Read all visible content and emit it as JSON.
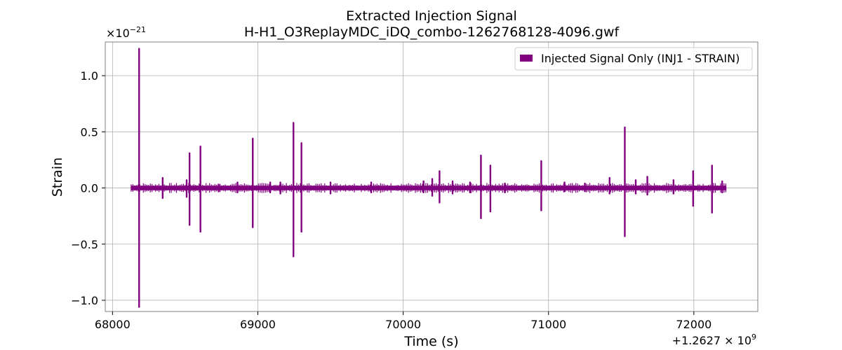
{
  "chart_data": {
    "type": "line",
    "title": "Extracted Injection Signal",
    "subtitle": "H-H1_O3ReplayMDC_iDQ_combo-1262768128-4096.gwf",
    "xlabel": "Time (s)",
    "ylabel": "Strain",
    "x_offset_text": "+1.2627 × 10^9",
    "y_scale_text": "×10^−21",
    "xlim": [
      67950,
      72440
    ],
    "ylim": [
      -1.1,
      1.3
    ],
    "x_ticks": [
      68000,
      69000,
      70000,
      71000,
      72000
    ],
    "x_tick_labels": [
      "68000",
      "69000",
      "70000",
      "71000",
      "72000"
    ],
    "y_ticks": [
      -1.0,
      -0.5,
      0.0,
      0.5,
      1.0
    ],
    "y_tick_labels": [
      "−1.0",
      "−0.5",
      "0.0",
      "0.5",
      "1.0"
    ],
    "grid": true,
    "legend_position": "top-right",
    "color": "#800080",
    "series": [
      {
        "name": "Injected Signal Only (INJ1 - STRAIN)",
        "x_range": [
          68128,
          72224
        ],
        "baseline_amplitude": 0.02,
        "spikes": [
          {
            "x": 68183,
            "max": 1.24,
            "min": -1.06
          },
          {
            "x": 68345,
            "max": 0.09,
            "min": -0.09
          },
          {
            "x": 68510,
            "max": 0.07,
            "min": -0.08
          },
          {
            "x": 68530,
            "max": 0.31,
            "min": -0.33
          },
          {
            "x": 68605,
            "max": 0.37,
            "min": -0.39
          },
          {
            "x": 68730,
            "max": 0.03,
            "min": -0.03
          },
          {
            "x": 68860,
            "max": 0.05,
            "min": -0.04
          },
          {
            "x": 68965,
            "max": 0.44,
            "min": -0.35
          },
          {
            "x": 69085,
            "max": 0.05,
            "min": -0.04
          },
          {
            "x": 69155,
            "max": 0.05,
            "min": -0.05
          },
          {
            "x": 69245,
            "max": 0.58,
            "min": -0.61
          },
          {
            "x": 69300,
            "max": 0.4,
            "min": -0.39
          },
          {
            "x": 69500,
            "max": 0.05,
            "min": -0.05
          },
          {
            "x": 69780,
            "max": 0.05,
            "min": -0.04
          },
          {
            "x": 70140,
            "max": 0.06,
            "min": -0.04
          },
          {
            "x": 70200,
            "max": 0.08,
            "min": -0.07
          },
          {
            "x": 70250,
            "max": 0.15,
            "min": -0.13
          },
          {
            "x": 70340,
            "max": 0.06,
            "min": -0.05
          },
          {
            "x": 70460,
            "max": 0.05,
            "min": -0.04
          },
          {
            "x": 70535,
            "max": 0.29,
            "min": -0.27
          },
          {
            "x": 70600,
            "max": 0.2,
            "min": -0.21
          },
          {
            "x": 70700,
            "max": 0.04,
            "min": -0.04
          },
          {
            "x": 70950,
            "max": 0.24,
            "min": -0.2
          },
          {
            "x": 71110,
            "max": 0.05,
            "min": -0.03
          },
          {
            "x": 71250,
            "max": 0.04,
            "min": -0.03
          },
          {
            "x": 71420,
            "max": 0.09,
            "min": -0.05
          },
          {
            "x": 71525,
            "max": 0.54,
            "min": -0.43
          },
          {
            "x": 71600,
            "max": 0.07,
            "min": -0.05
          },
          {
            "x": 71680,
            "max": 0.1,
            "min": -0.06
          },
          {
            "x": 71860,
            "max": 0.07,
            "min": -0.05
          },
          {
            "x": 71995,
            "max": 0.15,
            "min": -0.16
          },
          {
            "x": 72125,
            "max": 0.2,
            "min": -0.22
          },
          {
            "x": 72195,
            "max": 0.06,
            "min": -0.04
          }
        ]
      }
    ]
  }
}
